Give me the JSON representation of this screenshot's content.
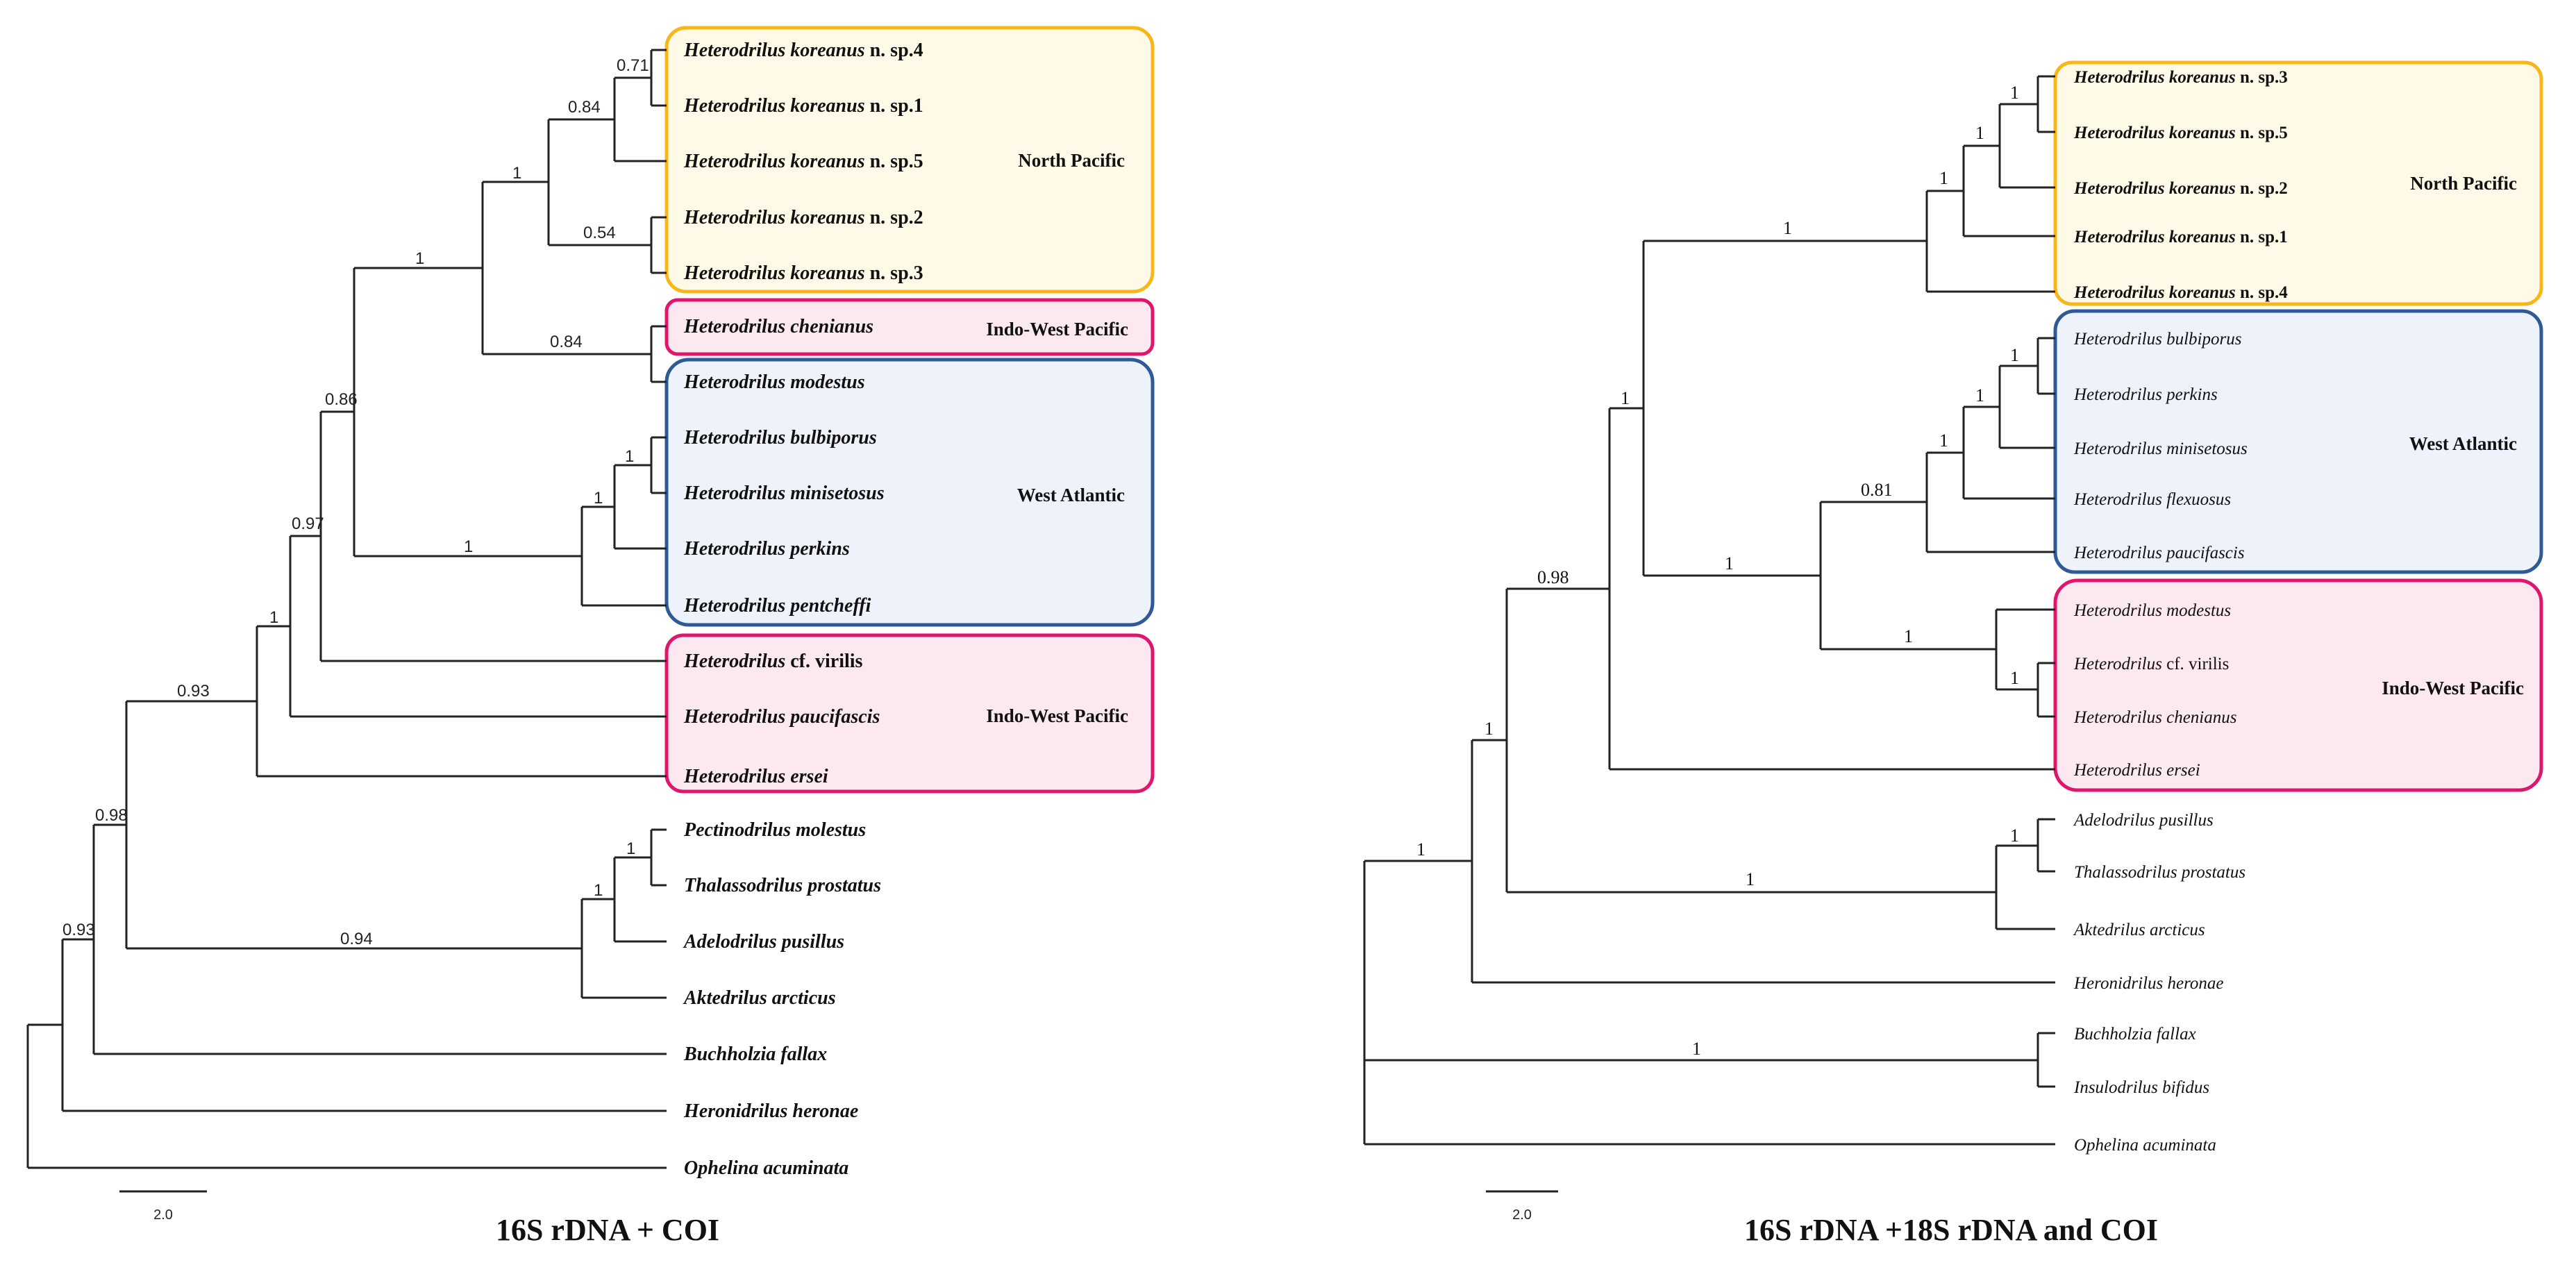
{
  "left_tree": {
    "caption": "16S rDNA + COI",
    "scale_label": "2.0",
    "groups": [
      {
        "label": "North Pacific",
        "color": "#F5B818",
        "fill": "#FFFAE8"
      },
      {
        "label": "Indo-West Pacific",
        "color": "#E0166E",
        "fill": "#FCE8EF"
      },
      {
        "label": "West Atlantic",
        "color": "#2E5A96",
        "fill": "#EEF2FA"
      },
      {
        "label": "Indo-West Pacific",
        "color": "#E0166E",
        "fill": "#FCE8EF"
      }
    ],
    "taxa": [
      {
        "name": "Heterodrilus koreanus",
        "suffix": " n. sp.4"
      },
      {
        "name": "Heterodrilus koreanus",
        "suffix": " n. sp.1"
      },
      {
        "name": "Heterodrilus koreanus",
        "suffix": " n. sp.5"
      },
      {
        "name": "Heterodrilus koreanus",
        "suffix": " n. sp.2"
      },
      {
        "name": "Heterodrilus koreanus",
        "suffix": " n. sp.3"
      },
      {
        "name": "Heterodrilus chenianus",
        "suffix": ""
      },
      {
        "name": "Heterodrilus modestus",
        "suffix": ""
      },
      {
        "name": "Heterodrilus bulbiporus",
        "suffix": ""
      },
      {
        "name": "Heterodrilus minisetosus",
        "suffix": ""
      },
      {
        "name": "Heterodrilus perkins",
        "suffix": ""
      },
      {
        "name": "Heterodrilus pentcheffi",
        "suffix": ""
      },
      {
        "name": "Heterodrilus",
        "suffix": " cf. virilis"
      },
      {
        "name": "Heterodrilus paucifascis",
        "suffix": ""
      },
      {
        "name": "Heterodrilus ersei",
        "suffix": ""
      },
      {
        "name": "Pectinodrilus molestus",
        "suffix": ""
      },
      {
        "name": "Thalassodrilus prostatus",
        "suffix": ""
      },
      {
        "name": "Adelodrilus pusillus",
        "suffix": ""
      },
      {
        "name": "Aktedrilus arcticus",
        "suffix": ""
      },
      {
        "name": "Buchholzia fallax",
        "suffix": ""
      },
      {
        "name": "Heronidrilus heronae",
        "suffix": ""
      },
      {
        "name": "Ophelina acuminata",
        "suffix": ""
      }
    ],
    "support_values": [
      "0.71",
      "0.84",
      "1",
      "0.54",
      "1",
      "0.84",
      "0.86",
      "1",
      "1",
      "1",
      "0.97",
      "1",
      "0.93",
      "1",
      "1",
      "0.94",
      "0.98",
      "0.93"
    ]
  },
  "right_tree": {
    "caption": "16S rDNA +18S rDNA and COI",
    "scale_label": "2.0",
    "groups": [
      {
        "label": "North Pacific",
        "color": "#F5B818",
        "fill": "#FFFAE8"
      },
      {
        "label": "West Atlantic",
        "color": "#2E5A96",
        "fill": "#EEF2FA"
      },
      {
        "label": "Indo-West Pacific",
        "color": "#E0166E",
        "fill": "#FCE8EF"
      }
    ],
    "taxa": [
      {
        "name": "Heterodrilus koreanus",
        "suffix": " n. sp.3"
      },
      {
        "name": "Heterodrilus koreanus",
        "suffix": " n. sp.5"
      },
      {
        "name": "Heterodrilus koreanus",
        "suffix": " n. sp.2"
      },
      {
        "name": "Heterodrilus koreanus",
        "suffix": " n. sp.1"
      },
      {
        "name": "Heterodrilus koreanus",
        "suffix": " n. sp.4"
      },
      {
        "name": "Heterodrilus bulbiporus",
        "suffix": ""
      },
      {
        "name": "Heterodrilus perkins",
        "suffix": ""
      },
      {
        "name": "Heterodrilus minisetosus",
        "suffix": ""
      },
      {
        "name": "Heterodrilus flexuosus",
        "suffix": ""
      },
      {
        "name": "Heterodrilus paucifascis",
        "suffix": ""
      },
      {
        "name": "Heterodrilus modestus",
        "suffix": ""
      },
      {
        "name": "Heterodrilus",
        "suffix": " cf. virilis"
      },
      {
        "name": "Heterodrilus chenianus",
        "suffix": ""
      },
      {
        "name": "Heterodrilus ersei",
        "suffix": ""
      },
      {
        "name": "Adelodrilus pusillus",
        "suffix": ""
      },
      {
        "name": "Thalassodrilus prostatus",
        "suffix": ""
      },
      {
        "name": "Aktedrilus arcticus",
        "suffix": ""
      },
      {
        "name": "Heronidrilus heronae",
        "suffix": ""
      },
      {
        "name": "Buchholzia fallax",
        "suffix": ""
      },
      {
        "name": "Insulodrilus bifidus",
        "suffix": ""
      },
      {
        "name": "Ophelina acuminata",
        "suffix": ""
      }
    ],
    "support_values": [
      "1",
      "1",
      "1",
      "1",
      "1",
      "1",
      "1",
      "0.81",
      "1",
      "1",
      "1",
      "1",
      "0.98",
      "1",
      "1",
      "1",
      "1",
      "1"
    ]
  }
}
